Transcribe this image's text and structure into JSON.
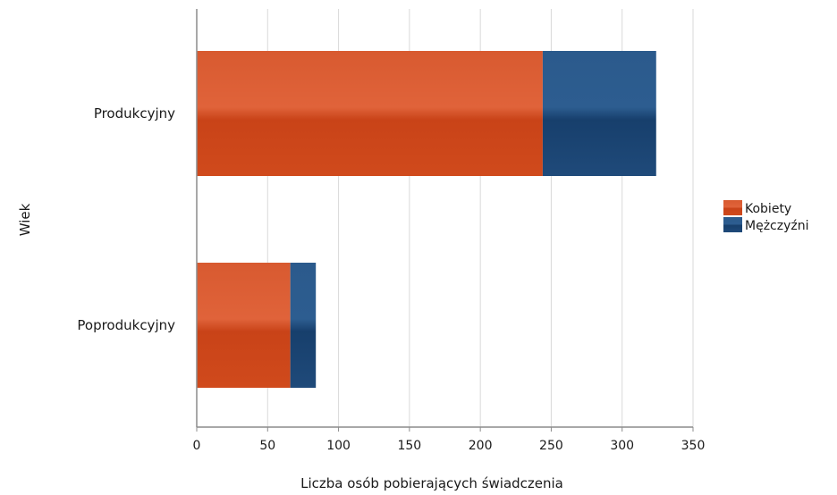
{
  "chart_data": {
    "type": "bar",
    "orientation": "horizontal",
    "stacked": true,
    "categories": [
      "Produkcyjny",
      "Poprodukcyjny"
    ],
    "series": [
      {
        "name": "Kobiety",
        "values": [
          244,
          66
        ],
        "color": "#d04a1c"
      },
      {
        "name": "Mężczyźni",
        "values": [
          80,
          18
        ],
        "color": "#1f4a7a"
      }
    ],
    "xlabel": "Liczba osób pobierających świadczenia",
    "ylabel": "Wiek",
    "xlim": [
      0,
      350
    ],
    "xticks": [
      0,
      50,
      100,
      150,
      200,
      250,
      300,
      350
    ],
    "grid": true,
    "legend_position": "right"
  }
}
